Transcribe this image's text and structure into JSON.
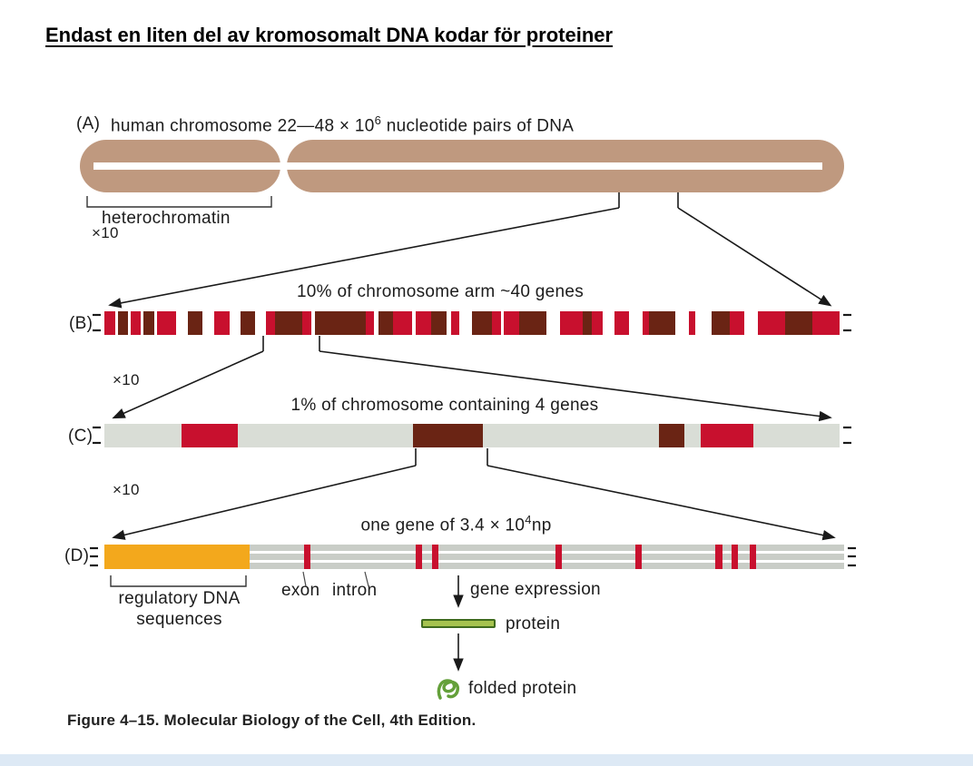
{
  "page": {
    "title": "Endast en liten del av kromosomalt DNA kodar för proteiner",
    "caption": "Figure 4–15. Molecular Biology of the Cell, 4th Edition."
  },
  "figure": {
    "zoom_1": "×10",
    "zoom_2": "×10",
    "zoom_3": "×10",
    "panel_a": {
      "label": "(A)",
      "text_main": "human chromosome 22—48 × 10",
      "text_exp": "6",
      "text_tail": " nucleotide pairs of DNA",
      "heterochromatin": "heterochromatin"
    },
    "panel_b": {
      "label": "(B)",
      "title": "10% of chromosome arm ~40 genes"
    },
    "panel_c": {
      "label": "(C)",
      "title": "1% of chromosome containing 4 genes"
    },
    "panel_d": {
      "label": "(D)",
      "title_main": "one gene of 3.4 × 10",
      "title_exp": "4",
      "title_unit": "np",
      "regulatory_line1": "regulatory DNA",
      "regulatory_line2": "sequences",
      "exon": "exon",
      "intron": "intron",
      "gene_expression": "gene expression",
      "protein": "protein",
      "folded_protein": "folded protein"
    }
  },
  "colors": {
    "tan": "#bf997f",
    "red": "#c8102e",
    "dark": "#6a2414",
    "grayC": "#d9ddd6",
    "grayD": "#c9cdc7",
    "yellow": "#f3a81c",
    "green1": "#a6c34f",
    "green2": "#64a03a",
    "green3": "#3f6b1e",
    "line": "#1a1a1a",
    "text": "#1c1c1c",
    "strip": "#dde9f5"
  },
  "bars": {
    "b_segments": [
      {
        "x": 0,
        "w": 1.5,
        "c": "red"
      },
      {
        "x": 1.9,
        "w": 1.3,
        "c": "dark"
      },
      {
        "x": 3.6,
        "w": 1.3,
        "c": "red"
      },
      {
        "x": 5.3,
        "w": 1.5,
        "c": "dark"
      },
      {
        "x": 7.2,
        "w": 2.6,
        "c": "red"
      },
      {
        "x": 11.3,
        "w": 2.0,
        "c": "dark"
      },
      {
        "x": 14.9,
        "w": 2.1,
        "c": "red"
      },
      {
        "x": 18.5,
        "w": 2.0,
        "c": "dark"
      },
      {
        "x": 22.0,
        "w": 1.2,
        "c": "red"
      },
      {
        "x": 23.2,
        "w": 3.7,
        "c": "dark"
      },
      {
        "x": 26.9,
        "w": 1.2,
        "c": "red"
      },
      {
        "x": 28.6,
        "w": 6.9,
        "c": "dark"
      },
      {
        "x": 35.5,
        "w": 1.2,
        "c": "red"
      },
      {
        "x": 37.3,
        "w": 1.9,
        "c": "dark"
      },
      {
        "x": 39.2,
        "w": 2.7,
        "c": "red"
      },
      {
        "x": 42.4,
        "w": 2.0,
        "c": "red"
      },
      {
        "x": 44.4,
        "w": 2.2,
        "c": "dark"
      },
      {
        "x": 47.1,
        "w": 1.2,
        "c": "red"
      },
      {
        "x": 50.0,
        "w": 2.7,
        "c": "dark"
      },
      {
        "x": 52.7,
        "w": 1.2,
        "c": "red"
      },
      {
        "x": 54.3,
        "w": 2.1,
        "c": "red"
      },
      {
        "x": 56.4,
        "w": 3.7,
        "c": "dark"
      },
      {
        "x": 62.0,
        "w": 3.1,
        "c": "red"
      },
      {
        "x": 65.1,
        "w": 1.2,
        "c": "dark"
      },
      {
        "x": 66.3,
        "w": 1.5,
        "c": "red"
      },
      {
        "x": 69.4,
        "w": 1.9,
        "c": "red"
      },
      {
        "x": 73.2,
        "w": 0.9,
        "c": "red"
      },
      {
        "x": 74.1,
        "w": 3.5,
        "c": "dark"
      },
      {
        "x": 79.5,
        "w": 0.9,
        "c": "red"
      },
      {
        "x": 82.6,
        "w": 2.5,
        "c": "dark"
      },
      {
        "x": 85.1,
        "w": 1.9,
        "c": "red"
      },
      {
        "x": 88.9,
        "w": 3.7,
        "c": "red"
      },
      {
        "x": 92.6,
        "w": 3.7,
        "c": "dark"
      },
      {
        "x": 96.3,
        "w": 3.7,
        "c": "red"
      }
    ],
    "c_segments": [
      {
        "x": 10.5,
        "w": 7.6,
        "c": "red"
      },
      {
        "x": 42.0,
        "w": 9.5,
        "c": "dark"
      },
      {
        "x": 75.4,
        "w": 3.5,
        "c": "dark"
      },
      {
        "x": 81.1,
        "w": 7.2,
        "c": "red"
      }
    ],
    "d_segments": [
      {
        "x": 0,
        "w": 19.6,
        "c": "yellow"
      },
      {
        "x": 27.0,
        "w": 0.9,
        "c": "red"
      },
      {
        "x": 42.1,
        "w": 0.9,
        "c": "red"
      },
      {
        "x": 44.3,
        "w": 0.9,
        "c": "red"
      },
      {
        "x": 61.0,
        "w": 0.9,
        "c": "red"
      },
      {
        "x": 71.8,
        "w": 0.9,
        "c": "red"
      },
      {
        "x": 82.6,
        "w": 0.9,
        "c": "red"
      },
      {
        "x": 84.8,
        "w": 0.9,
        "c": "red"
      },
      {
        "x": 87.2,
        "w": 0.9,
        "c": "red"
      }
    ]
  }
}
